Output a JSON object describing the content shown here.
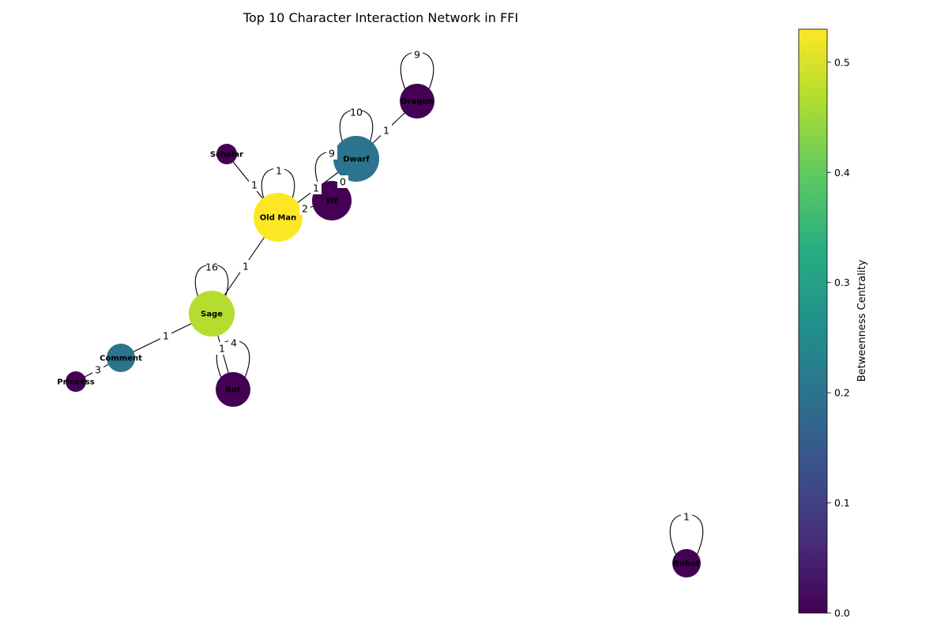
{
  "title": "Top 10 Character Interaction Network in FFI",
  "colorbar": {
    "label": "Betweenness Centrality",
    "range": [
      0.0,
      0.53
    ],
    "ticks": [
      "0.0",
      "0.1",
      "0.2",
      "0.3",
      "0.4",
      "0.5"
    ],
    "colormap": "viridis"
  },
  "nodes": [
    {
      "id": "Dragon",
      "label": "Dragon",
      "betweenness": 0.0
    },
    {
      "id": "Dwarf",
      "label": "Dwarf",
      "betweenness": 0.2
    },
    {
      "id": "Scholar",
      "label": "Scholar",
      "betweenness": 0.0
    },
    {
      "id": "Elf",
      "label": "Elf",
      "betweenness": 0.0
    },
    {
      "id": "Old Man",
      "label": "Old Man",
      "betweenness": 0.53
    },
    {
      "id": "Sage",
      "label": "Sage",
      "betweenness": 0.47
    },
    {
      "id": "Comment",
      "label": "Comment",
      "betweenness": 0.2
    },
    {
      "id": "Princess",
      "label": "Princess",
      "betweenness": 0.0
    },
    {
      "id": "Bat",
      "label": "Bat",
      "betweenness": 0.0
    },
    {
      "id": "Robot",
      "label": "Robot",
      "betweenness": 0.0
    }
  ],
  "edges": [
    {
      "source": "Dragon",
      "target": "Dragon",
      "weight": "9"
    },
    {
      "source": "Dwarf",
      "target": "Dwarf",
      "weight": "10"
    },
    {
      "source": "Elf",
      "target": "Elf",
      "weight": "9"
    },
    {
      "source": "Old Man",
      "target": "Old Man",
      "weight": "1"
    },
    {
      "source": "Sage",
      "target": "Sage",
      "weight": "16"
    },
    {
      "source": "Bat",
      "target": "Bat",
      "weight": "4"
    },
    {
      "source": "Robot",
      "target": "Robot",
      "weight": "1"
    },
    {
      "source": "Dragon",
      "target": "Dwarf",
      "weight": "1"
    },
    {
      "source": "Dwarf",
      "target": "Elf",
      "weight": "0"
    },
    {
      "source": "Dwarf",
      "target": "Old Man",
      "weight": "2"
    },
    {
      "source": "Elf",
      "target": "Old Man",
      "weight": "1"
    },
    {
      "source": "Scholar",
      "target": "Old Man",
      "weight": "1"
    },
    {
      "source": "Old Man",
      "target": "Sage",
      "weight": "1"
    },
    {
      "source": "Sage",
      "target": "Comment",
      "weight": "1"
    },
    {
      "source": "Sage",
      "target": "Bat",
      "weight": "1"
    },
    {
      "source": "Comment",
      "target": "Princess",
      "weight": "3"
    }
  ]
}
